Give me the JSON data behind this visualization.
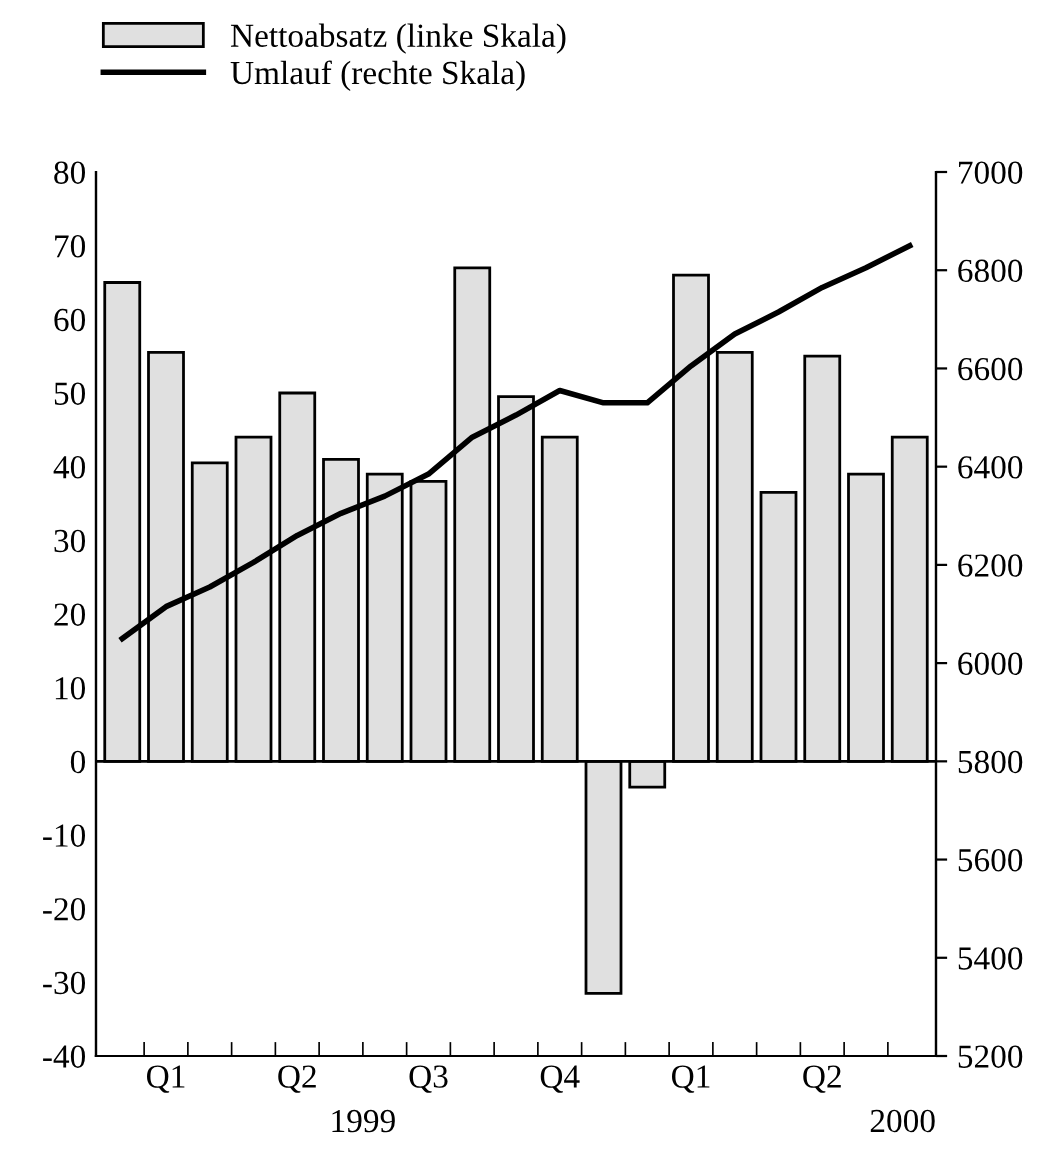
{
  "chart_data": {
    "type": "bar",
    "categories": [
      null,
      "Q1",
      null,
      null,
      "Q2",
      null,
      null,
      "Q3",
      null,
      null,
      "Q4",
      null,
      null,
      "Q1",
      null,
      null,
      "Q2",
      null,
      null
    ],
    "series": [
      {
        "name": "Nettoabsatz (linke Skala)",
        "color": "#e0e0e0",
        "values": [
          65,
          55.5,
          40.5,
          44,
          50,
          41,
          39,
          38,
          67,
          49.5,
          44,
          -31.5,
          -3.5,
          66,
          55.5,
          36.5,
          55,
          39,
          44
        ]
      },
      {
        "name": "Umlauf (rechte Skala)",
        "type": "line",
        "axis": "y2",
        "color": "#000000",
        "values": [
          6050,
          6115,
          6155,
          6205,
          6260,
          6305,
          6340,
          6385,
          6460,
          6505,
          6555,
          6530,
          6530,
          6605,
          6670,
          6715,
          6765,
          6805,
          6850
        ]
      }
    ],
    "ylim": [
      -40,
      80
    ],
    "yticks": [
      -40,
      -30,
      -20,
      -10,
      0,
      10,
      20,
      30,
      40,
      50,
      60,
      70,
      80
    ],
    "y2lim": [
      5200,
      7000
    ],
    "y2ticks": [
      5200,
      5400,
      5600,
      5800,
      6000,
      6200,
      6400,
      6600,
      6800,
      7000
    ],
    "annotations": [
      "1999",
      "2000"
    ],
    "ref_lines": [
      {
        "axis": "y",
        "value": 0
      }
    ],
    "legend": "top left",
    "grid": false,
    "marker": "none",
    "line_style": "solid"
  }
}
